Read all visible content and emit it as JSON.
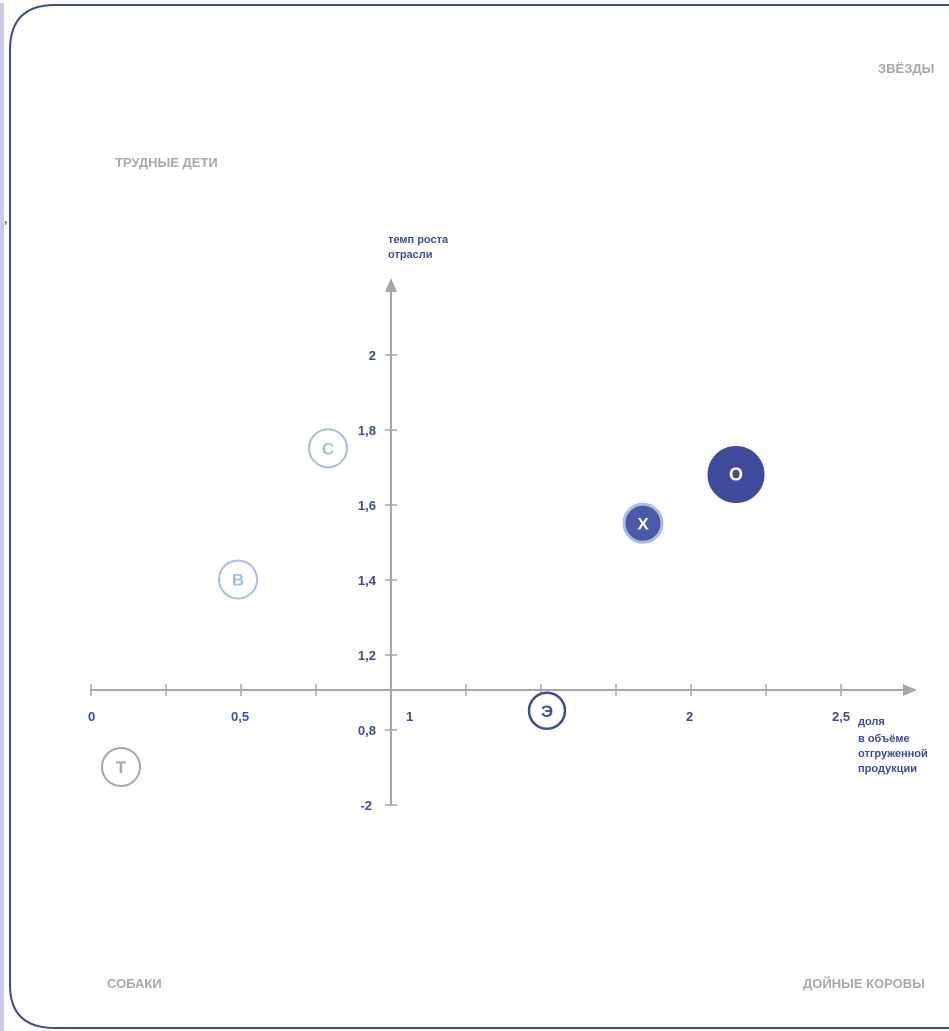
{
  "chart_data": {
    "type": "scatter",
    "quadrants": {
      "top_left": "ТРУДНЫЕ ДЕТИ",
      "top_right": "ЗВЁЗДЫ",
      "bottom_left": "СОБАКИ",
      "bottom_right": "ДОЙНЫЕ КОРОВЫ"
    },
    "ylabel": [
      "темп роста",
      "отрасли"
    ],
    "xlabel": [
      "доля",
      "в объёме",
      "отгруженной",
      "продукции"
    ],
    "xticks": [
      "0",
      "0,5",
      "1",
      "2",
      "2,5"
    ],
    "yticks": [
      "2",
      "1,8",
      "1,6",
      "1,4",
      "1,2",
      "0,8",
      "-2"
    ],
    "points": [
      {
        "label": "Т",
        "x": 0.1,
        "y": 0.8,
        "style": "outline-gray"
      },
      {
        "label": "В",
        "x": 0.49,
        "y": 1.3,
        "style": "outline-light"
      },
      {
        "label": "С",
        "x": 0.79,
        "y": 1.65,
        "style": "outline-light"
      },
      {
        "label": "Э",
        "x": 1.52,
        "y": 0.95,
        "style": "outline-navy"
      },
      {
        "label": "Х",
        "x": 1.84,
        "y": 1.45,
        "style": "filled-medium"
      },
      {
        "label": "О",
        "x": 2.15,
        "y": 1.58,
        "style": "filled-dark"
      }
    ],
    "colors": {
      "navy": "#3d4b9a",
      "gray_text": "#a8a8a8",
      "light_blue": "#a9bde0",
      "axis": "#a6a6a6",
      "frame": "#3d4b9a"
    }
  }
}
